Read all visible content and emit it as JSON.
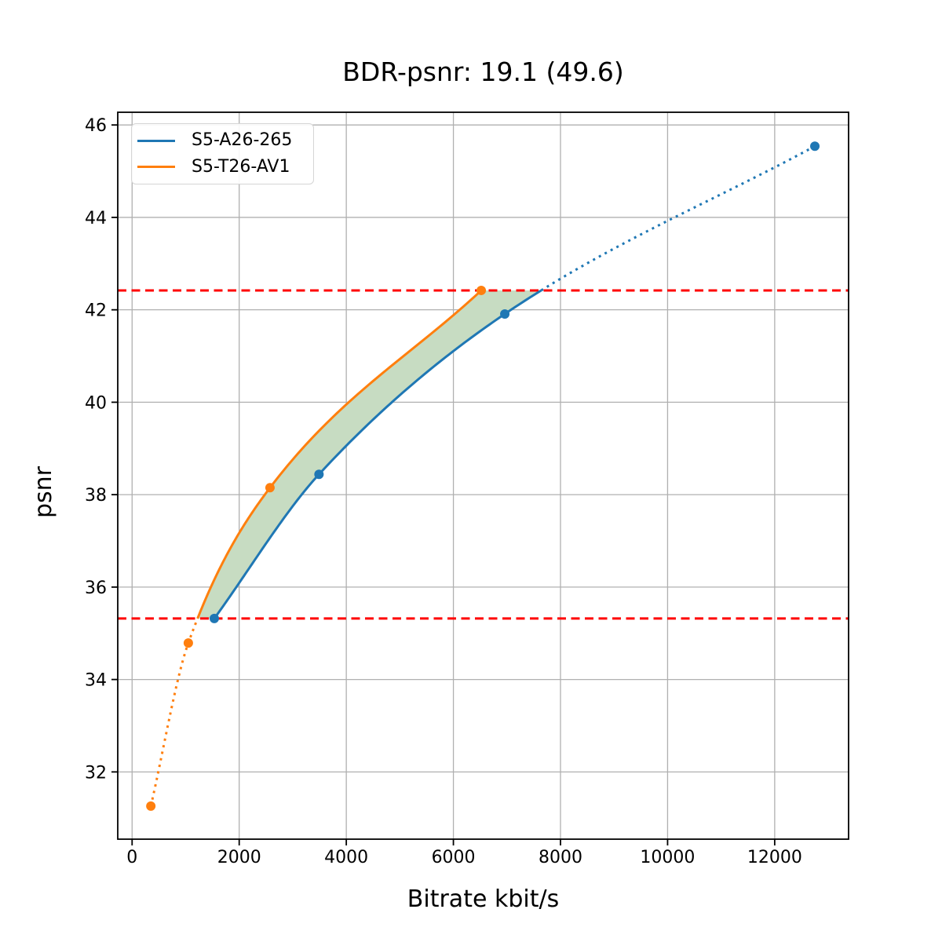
{
  "chart_data": {
    "type": "line",
    "title": "BDR-psnr: 19.1 (49.6)",
    "xlabel": "Bitrate kbit/s",
    "ylabel": "psnr",
    "xlim": [
      -268,
      13380
    ],
    "ylim": [
      30.545,
      46.275
    ],
    "xticks": [
      0,
      2000,
      4000,
      6000,
      8000,
      10000,
      12000
    ],
    "yticks": [
      32,
      34,
      36,
      38,
      40,
      42,
      44,
      46
    ],
    "grid": true,
    "legend_position": "upper-left",
    "series": [
      {
        "name": "S5-A26-265",
        "color": "#1f77b4",
        "x": [
          1535,
          3490,
          6960,
          12750
        ],
        "y": [
          35.32,
          38.44,
          41.91,
          45.54
        ]
      },
      {
        "name": "S5-T26-AV1",
        "color": "#ff7f0e",
        "x": [
          350,
          1050,
          2575,
          6520
        ],
        "y": [
          31.26,
          34.79,
          38.15,
          42.42
        ]
      }
    ],
    "hlines": [
      {
        "y": 35.32,
        "color": "#ff0000",
        "style": "dashed"
      },
      {
        "y": 42.42,
        "color": "#ff0000",
        "style": "dashed"
      }
    ],
    "shaded_region": {
      "between": [
        "S5-T26-AV1",
        "S5-A26-265"
      ],
      "psnr_min": 35.32,
      "psnr_max": 42.42,
      "color": "#c7dcc2"
    },
    "style": {
      "grid_color": "#b0b0b0",
      "spine_color": "#000000",
      "background": "#ffffff",
      "solid_outside_overlap": "dotted"
    }
  }
}
